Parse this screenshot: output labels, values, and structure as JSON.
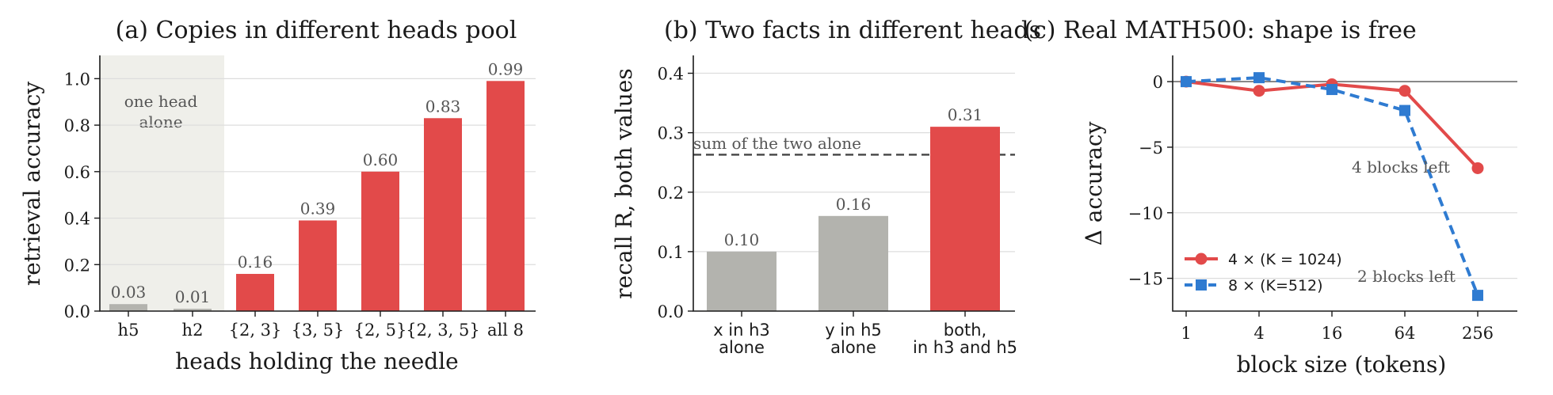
{
  "colors": {
    "red": "#e24a4a",
    "gray": "#b3b3ae",
    "blue": "#2f7bd1",
    "shade": "#efefea",
    "dash": "#444444",
    "zero_line": "#777777"
  },
  "chart_data": [
    {
      "type": "bar",
      "title": "(a) Copies in different heads pool",
      "xlabel": "heads holding the needle",
      "ylabel": "retrieval accuracy",
      "ylim": [
        0,
        1.1
      ],
      "yticks": [
        "0.0",
        "0.2",
        "0.4",
        "0.6",
        "0.8",
        "1.0"
      ],
      "categories": [
        "h5",
        "h2",
        "{2, 3}",
        "{3, 5}",
        "{2, 5}",
        "{2, 3, 5}",
        "all 8"
      ],
      "values": [
        0.03,
        0.01,
        0.16,
        0.39,
        0.6,
        0.83,
        0.99
      ],
      "value_labels": [
        "0.03",
        "0.01",
        "0.16",
        "0.39",
        "0.60",
        "0.83",
        "0.99"
      ],
      "bar_colors": [
        "gray",
        "gray",
        "red",
        "red",
        "red",
        "red",
        "red"
      ],
      "shaded_region_label": [
        "one head",
        "alone"
      ],
      "grid": "horizontal"
    },
    {
      "type": "bar",
      "title": "(b) Two facts in different heads",
      "xlabel": "",
      "ylabel": "recall R, both values",
      "ylim": [
        0,
        0.43
      ],
      "yticks": [
        "0.0",
        "0.1",
        "0.2",
        "0.3",
        "0.4"
      ],
      "categories": [
        [
          "x in h3",
          "alone"
        ],
        [
          "y in h5",
          "alone"
        ],
        [
          "both,",
          "in h3 and h5"
        ]
      ],
      "values": [
        0.1,
        0.16,
        0.31
      ],
      "value_labels": [
        "0.10",
        "0.16",
        "0.31"
      ],
      "bar_colors": [
        "gray",
        "gray",
        "red"
      ],
      "reference_line": {
        "value": 0.263,
        "label": "sum of the two alone",
        "style": "dashed"
      },
      "grid": "horizontal"
    },
    {
      "type": "line",
      "title": "(c) Real MATH500: shape is free",
      "xlabel": "block size (tokens)",
      "ylabel": "Δ accuracy",
      "x": [
        1,
        4,
        16,
        64,
        256
      ],
      "xticks": [
        "1",
        "4",
        "16",
        "64",
        "256"
      ],
      "xscale": "log",
      "ylim": [
        -17.5,
        2
      ],
      "yticks": [
        "0",
        "−5",
        "−10",
        "−15"
      ],
      "ytick_values": [
        0,
        -5,
        -10,
        -15
      ],
      "series": [
        {
          "name": "4 ×  (K = 1024)",
          "values": [
            0.0,
            -0.7,
            -0.2,
            -0.7,
            -6.6
          ],
          "color": "red",
          "marker": "circle",
          "style": "solid"
        },
        {
          "name": "8 ×  (K=512)",
          "values": [
            0.0,
            0.3,
            -0.6,
            -2.2,
            -16.3
          ],
          "color": "blue",
          "marker": "square",
          "style": "dashed"
        }
      ],
      "annotations": [
        "4 blocks left",
        "2 blocks left"
      ],
      "legend": "lower-left",
      "grid": "horizontal"
    }
  ]
}
